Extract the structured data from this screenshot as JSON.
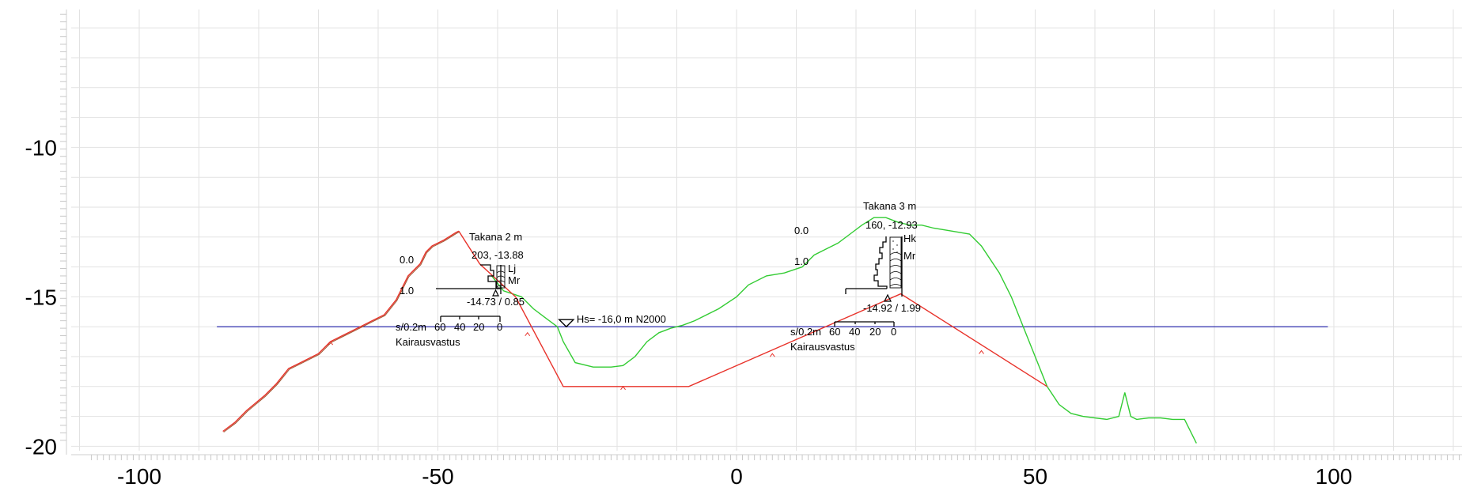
{
  "axes": {
    "x_ticks": [
      -100,
      -50,
      0,
      50,
      100
    ],
    "y_ticks": [
      -10,
      -15,
      -20
    ],
    "x_labels": [
      "-100",
      "-50",
      "0",
      "50",
      "100"
    ],
    "y_labels": [
      "-10",
      "-15",
      "-20"
    ]
  },
  "water_level": {
    "label": "Hs= -16,0 m N2000",
    "level": -16.0,
    "x_range": [
      -87,
      99
    ],
    "marker_x": -28.5,
    "color": "#1a1aa8"
  },
  "colors": {
    "terrain_green": "#33cc33",
    "terrain_red": "#e8322a",
    "terrain_brown": "#a0522d",
    "grid": "#e2e2e2",
    "ink": "#000000"
  },
  "soundings": [
    {
      "id": "left",
      "title": "Takana 2 m",
      "resistance_label": "203, -13.88",
      "top_depth_label": "0.0",
      "mid_depth_label": "1.0",
      "bottom_label": "-14.73 / 0.85",
      "layers": [
        "Lj",
        "Mr"
      ],
      "scale_label": "s/0.2m",
      "scale_ticks": [
        "60",
        "40",
        "20",
        "0"
      ],
      "method_label": "Kairausvastus"
    },
    {
      "id": "right",
      "title": "Takana 3 m",
      "resistance_label": "160, -12.93",
      "top_depth_label": "0.0",
      "mid_depth_label": "1.0",
      "bottom_label": "-14.92 / 1.99",
      "layers": [
        "Hk",
        "Mr"
      ],
      "scale_label": "s/0.2m",
      "scale_ticks": [
        "60",
        "40",
        "20",
        "0"
      ],
      "method_label": "Kairausvastus"
    }
  ],
  "chart_data": {
    "type": "line",
    "xlim": [
      -110,
      120
    ],
    "ylim": [
      -20,
      -5.3
    ],
    "series": [
      {
        "color": "#33cc33",
        "x": [
          -41,
          -39,
          -36,
          -34,
          -32,
          -30,
          -29,
          -27,
          -24,
          -21,
          -19,
          -17,
          -15,
          -13,
          -11,
          -9,
          -7,
          -3,
          0,
          2,
          5,
          8,
          11,
          13,
          15,
          17,
          19,
          21,
          23,
          25,
          27,
          29,
          31,
          33,
          36,
          39,
          41,
          44,
          46,
          48,
          50,
          52,
          54,
          56,
          58,
          60,
          62,
          64,
          65,
          66,
          67,
          69,
          71,
          73,
          75,
          77
        ],
        "y": [
          -14.3,
          -14.8,
          -15.0,
          -15.4,
          -15.7,
          -16.0,
          -16.5,
          -17.2,
          -17.35,
          -17.35,
          -17.3,
          -17.0,
          -16.5,
          -16.2,
          -16.05,
          -15.95,
          -15.8,
          -15.4,
          -15.0,
          -14.6,
          -14.3,
          -14.2,
          -14.0,
          -13.6,
          -13.4,
          -13.2,
          -12.9,
          -12.6,
          -12.35,
          -12.35,
          -12.5,
          -12.6,
          -12.6,
          -12.7,
          -12.8,
          -12.9,
          -13.3,
          -14.2,
          -15.0,
          -16.0,
          -17.0,
          -18.0,
          -18.6,
          -18.9,
          -19.0,
          -19.05,
          -19.1,
          -19.0,
          -18.2,
          -19.0,
          -19.1,
          -19.05,
          -19.05,
          -19.1,
          -19.1,
          -19.9
        ]
      },
      {
        "color": "#e8322a",
        "x": [
          -86,
          -84,
          -82,
          -79,
          -77,
          -75,
          -73,
          -70,
          -68,
          -66,
          -63,
          -61,
          -59,
          -57,
          -55,
          -53,
          -52,
          -51,
          -49,
          -47,
          -46.5
        ],
        "y": [
          -19.5,
          -19.2,
          -18.8,
          -18.3,
          -17.9,
          -17.4,
          -17.2,
          -16.9,
          -16.5,
          -16.3,
          -16.0,
          -15.8,
          -15.6,
          -15.1,
          -14.3,
          -13.9,
          -13.5,
          -13.3,
          -13.1,
          -12.85,
          -12.8
        ]
      },
      {
        "color": "#e8322a",
        "x": [
          -46.5,
          -43,
          -37,
          -29,
          -8,
          27.5,
          52
        ],
        "y": [
          -12.8,
          -13.9,
          -15.0,
          -18.0,
          -18.0,
          -14.9,
          -18.0
        ]
      }
    ]
  }
}
